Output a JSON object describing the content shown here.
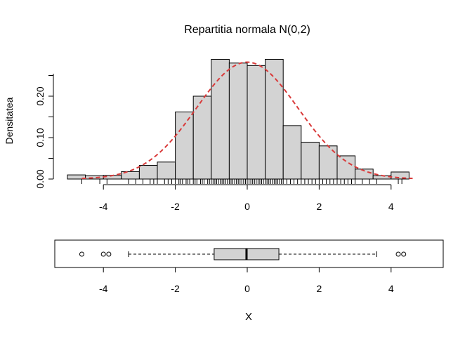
{
  "chart_data": [
    {
      "type": "bar",
      "title": "Repartitia normala N(0,2)",
      "ylabel": "Densitatea",
      "xlim": [
        -5.2,
        5.2
      ],
      "ylim": [
        0,
        0.28
      ],
      "xticks": [
        "-4",
        "-2",
        "0",
        "2",
        "4"
      ],
      "yticks": [
        "0.00",
        "0.10",
        "0.20"
      ],
      "bins": [
        {
          "from": -5.0,
          "to": -4.5,
          "value": 0.01
        },
        {
          "from": -4.5,
          "to": -4.0,
          "value": 0.008
        },
        {
          "from": -4.0,
          "to": -3.5,
          "value": 0.009
        },
        {
          "from": -3.5,
          "to": -3.0,
          "value": 0.018
        },
        {
          "from": -3.0,
          "to": -2.5,
          "value": 0.033
        },
        {
          "from": -2.5,
          "to": -2.0,
          "value": 0.041
        },
        {
          "from": -2.0,
          "to": -1.5,
          "value": 0.162
        },
        {
          "from": -1.5,
          "to": -1.0,
          "value": 0.2
        },
        {
          "from": -1.0,
          "to": -0.5,
          "value": 0.289
        },
        {
          "from": -0.5,
          "to": 0.0,
          "value": 0.28
        },
        {
          "from": 0.0,
          "to": 0.5,
          "value": 0.274
        },
        {
          "from": 0.5,
          "to": 1.0,
          "value": 0.289
        },
        {
          "from": 1.0,
          "to": 1.5,
          "value": 0.129
        },
        {
          "from": 1.5,
          "to": 2.0,
          "value": 0.089
        },
        {
          "from": 2.0,
          "to": 2.5,
          "value": 0.08
        },
        {
          "from": 2.5,
          "to": 3.0,
          "value": 0.056
        },
        {
          "from": 3.0,
          "to": 3.5,
          "value": 0.024
        },
        {
          "from": 3.5,
          "to": 4.0,
          "value": 0.008
        },
        {
          "from": 4.0,
          "to": 4.5,
          "value": 0.017
        }
      ],
      "density_curve": {
        "mean": 0,
        "sd": 1.4142,
        "color": "#D93A3A",
        "style": "dashed"
      },
      "rug": [
        -4.6,
        -4.1,
        -3.9,
        -3.3,
        -3.1,
        -2.9,
        -2.7,
        -2.6,
        -2.5,
        -2.3,
        -2.2,
        -2.1,
        -2.0,
        -1.9,
        -1.85,
        -1.8,
        -1.7,
        -1.65,
        -1.6,
        -1.5,
        -1.45,
        -1.4,
        -1.3,
        -1.25,
        -1.2,
        -1.1,
        -1.05,
        -1.0,
        -0.95,
        -0.9,
        -0.85,
        -0.8,
        -0.75,
        -0.7,
        -0.65,
        -0.6,
        -0.55,
        -0.5,
        -0.45,
        -0.4,
        -0.35,
        -0.3,
        -0.25,
        -0.2,
        -0.15,
        -0.1,
        -0.05,
        0.0,
        0.05,
        0.1,
        0.15,
        0.2,
        0.25,
        0.3,
        0.35,
        0.4,
        0.45,
        0.5,
        0.55,
        0.6,
        0.65,
        0.7,
        0.75,
        0.8,
        0.85,
        0.9,
        0.95,
        1.0,
        1.1,
        1.2,
        1.3,
        1.4,
        1.5,
        1.6,
        1.7,
        1.8,
        1.9,
        2.0,
        2.1,
        2.2,
        2.3,
        2.4,
        2.5,
        2.6,
        2.7,
        2.8,
        2.9,
        3.0,
        3.2,
        3.4,
        3.6,
        4.2,
        4.3
      ],
      "bar_color": "#D3D3D3"
    },
    {
      "type": "boxplot",
      "orientation": "horizontal",
      "xlabel": "X",
      "xlim": [
        -5.2,
        5.2
      ],
      "xticks": [
        "-4",
        "-2",
        "0",
        "2",
        "4"
      ],
      "stats": {
        "whisker_low": -3.3,
        "q1": -0.92,
        "median": -0.02,
        "q3": 0.88,
        "whisker_high": 3.6
      },
      "outliers": [
        -4.6,
        -4.0,
        -3.85,
        4.2,
        4.35
      ],
      "box_color": "#D3D3D3"
    }
  ]
}
